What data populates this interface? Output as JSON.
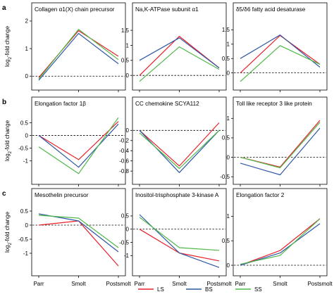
{
  "figure": {
    "row_labels": [
      "a",
      "b",
      "c"
    ],
    "ylabel_main": "log",
    "ylabel_sub": "2",
    "ylabel_tail": "-fold change",
    "legend": [
      {
        "name": "LS",
        "color": "#e8202a"
      },
      {
        "name": "BS",
        "color": "#2f58a6"
      },
      {
        "name": "SS",
        "color": "#4fb848"
      }
    ]
  },
  "chart_data": [
    {
      "type": "line",
      "title": "Collagen α1(X) chain precursor",
      "row": 0,
      "col": 0,
      "categories": [
        "Parr",
        "Smolt",
        "Postsmolt"
      ],
      "ylim": [
        -0.3,
        2.1
      ],
      "yticks": [
        0,
        1,
        2
      ],
      "series": [
        {
          "name": "LS",
          "values": [
            -0.05,
            1.65,
            0.72
          ]
        },
        {
          "name": "BS",
          "values": [
            -0.15,
            1.55,
            0.45
          ]
        },
        {
          "name": "SS",
          "values": [
            -0.1,
            1.7,
            0.6
          ]
        }
      ]
    },
    {
      "type": "line",
      "title": "Na,K-ATPase subunit α1",
      "row": 0,
      "col": 1,
      "categories": [
        "Parr",
        "Smolt",
        "Postsmolt"
      ],
      "ylim": [
        -0.3,
        1.9
      ],
      "yticks": [
        0,
        0.5,
        1,
        1.5
      ],
      "series": [
        {
          "name": "LS",
          "values": [
            0.0,
            1.3,
            0.25
          ]
        },
        {
          "name": "BS",
          "values": [
            0.5,
            1.25,
            0.25
          ]
        },
        {
          "name": "SS",
          "values": [
            -0.2,
            0.95,
            0.2
          ]
        }
      ]
    },
    {
      "type": "line",
      "title": "δ5/δ6 fatty acid desaturase",
      "row": 0,
      "col": 2,
      "categories": [
        "Parr",
        "Smolt",
        "Postsmolt"
      ],
      "ylim": [
        -0.4,
        1.9
      ],
      "yticks": [
        0,
        0.5,
        1,
        1.5
      ],
      "series": [
        {
          "name": "LS",
          "values": [
            0.0,
            1.3,
            0.3
          ]
        },
        {
          "name": "BS",
          "values": [
            0.5,
            1.32,
            0.2
          ]
        },
        {
          "name": "SS",
          "values": [
            -0.3,
            0.95,
            0.3
          ]
        }
      ]
    },
    {
      "type": "line",
      "title": "Elongation factor 1β",
      "row": 1,
      "col": 0,
      "categories": [
        "Parr",
        "Smolt",
        "Postsmolt"
      ],
      "ylim": [
        -1.7,
        0.9
      ],
      "yticks": [
        -1,
        -0.5,
        0,
        0.5
      ],
      "series": [
        {
          "name": "LS",
          "values": [
            0.0,
            -0.95,
            0.55
          ]
        },
        {
          "name": "BS",
          "values": [
            0.0,
            -1.25,
            0.45
          ]
        },
        {
          "name": "SS",
          "values": [
            -0.45,
            -1.5,
            0.7
          ]
        }
      ]
    },
    {
      "type": "line",
      "title": "CC chemokine SCYA112",
      "row": 1,
      "col": 1,
      "categories": [
        "Parr",
        "Smolt",
        "Postsmolt"
      ],
      "ylim": [
        -0.95,
        0.35
      ],
      "yticks": [
        -0.8,
        -0.6,
        -0.4,
        -0.2,
        0
      ],
      "series": [
        {
          "name": "LS",
          "values": [
            0.0,
            -0.7,
            0.15
          ]
        },
        {
          "name": "BS",
          "values": [
            0.0,
            -0.83,
            0.0
          ]
        },
        {
          "name": "SS",
          "values": [
            -0.05,
            -0.75,
            0.0
          ]
        }
      ]
    },
    {
      "type": "line",
      "title": "Toll like receptor 3 like protein",
      "row": 1,
      "col": 2,
      "categories": [
        "Parr",
        "Smolt",
        "Postsmolt"
      ],
      "ylim": [
        -0.55,
        1.15
      ],
      "yticks": [
        -0.5,
        0,
        0.5,
        1
      ],
      "series": [
        {
          "name": "LS",
          "values": [
            0.0,
            -0.25,
            0.95
          ]
        },
        {
          "name": "BS",
          "values": [
            -0.15,
            -0.45,
            0.75
          ]
        },
        {
          "name": "SS",
          "values": [
            0.0,
            -0.27,
            0.9
          ]
        }
      ]
    },
    {
      "type": "line",
      "title": "Mesothelin precursor",
      "row": 2,
      "col": 0,
      "categories": [
        "Parr",
        "Smolt",
        "Postsmolt"
      ],
      "ylim": [
        -1.6,
        0.75
      ],
      "yticks": [
        -1,
        -0.5,
        0,
        0.5
      ],
      "series": [
        {
          "name": "LS",
          "values": [
            0.0,
            0.15,
            -1.45
          ]
        },
        {
          "name": "BS",
          "values": [
            0.4,
            0.15,
            -0.95
          ]
        },
        {
          "name": "SS",
          "values": [
            0.35,
            0.25,
            -0.8
          ]
        }
      ]
    },
    {
      "type": "line",
      "title": "Inositol-trisphosphate 3-kinase A",
      "row": 2,
      "col": 1,
      "categories": [
        "Parr",
        "Smolt",
        "Postsmolt"
      ],
      "ylim": [
        -1.55,
        0.95
      ],
      "yticks": [
        -1,
        -0.5,
        0,
        0.5
      ],
      "series": [
        {
          "name": "LS",
          "values": [
            0.0,
            -0.9,
            -1.2
          ]
        },
        {
          "name": "BS",
          "values": [
            0.55,
            -0.9,
            -1.45
          ]
        },
        {
          "name": "SS",
          "values": [
            0.45,
            -0.7,
            -0.8
          ]
        }
      ]
    },
    {
      "type": "line",
      "title": "Elongation factor 2",
      "row": 2,
      "col": 2,
      "categories": [
        "Parr",
        "Smolt",
        "Postsmolt"
      ],
      "ylim": [
        -0.1,
        1.25
      ],
      "yticks": [
        0,
        0.5,
        1
      ],
      "series": [
        {
          "name": "LS",
          "values": [
            0.0,
            0.3,
            0.95
          ]
        },
        {
          "name": "BS",
          "values": [
            0.0,
            0.25,
            0.85
          ]
        },
        {
          "name": "SS",
          "values": [
            0.02,
            0.2,
            0.95
          ]
        }
      ]
    }
  ]
}
